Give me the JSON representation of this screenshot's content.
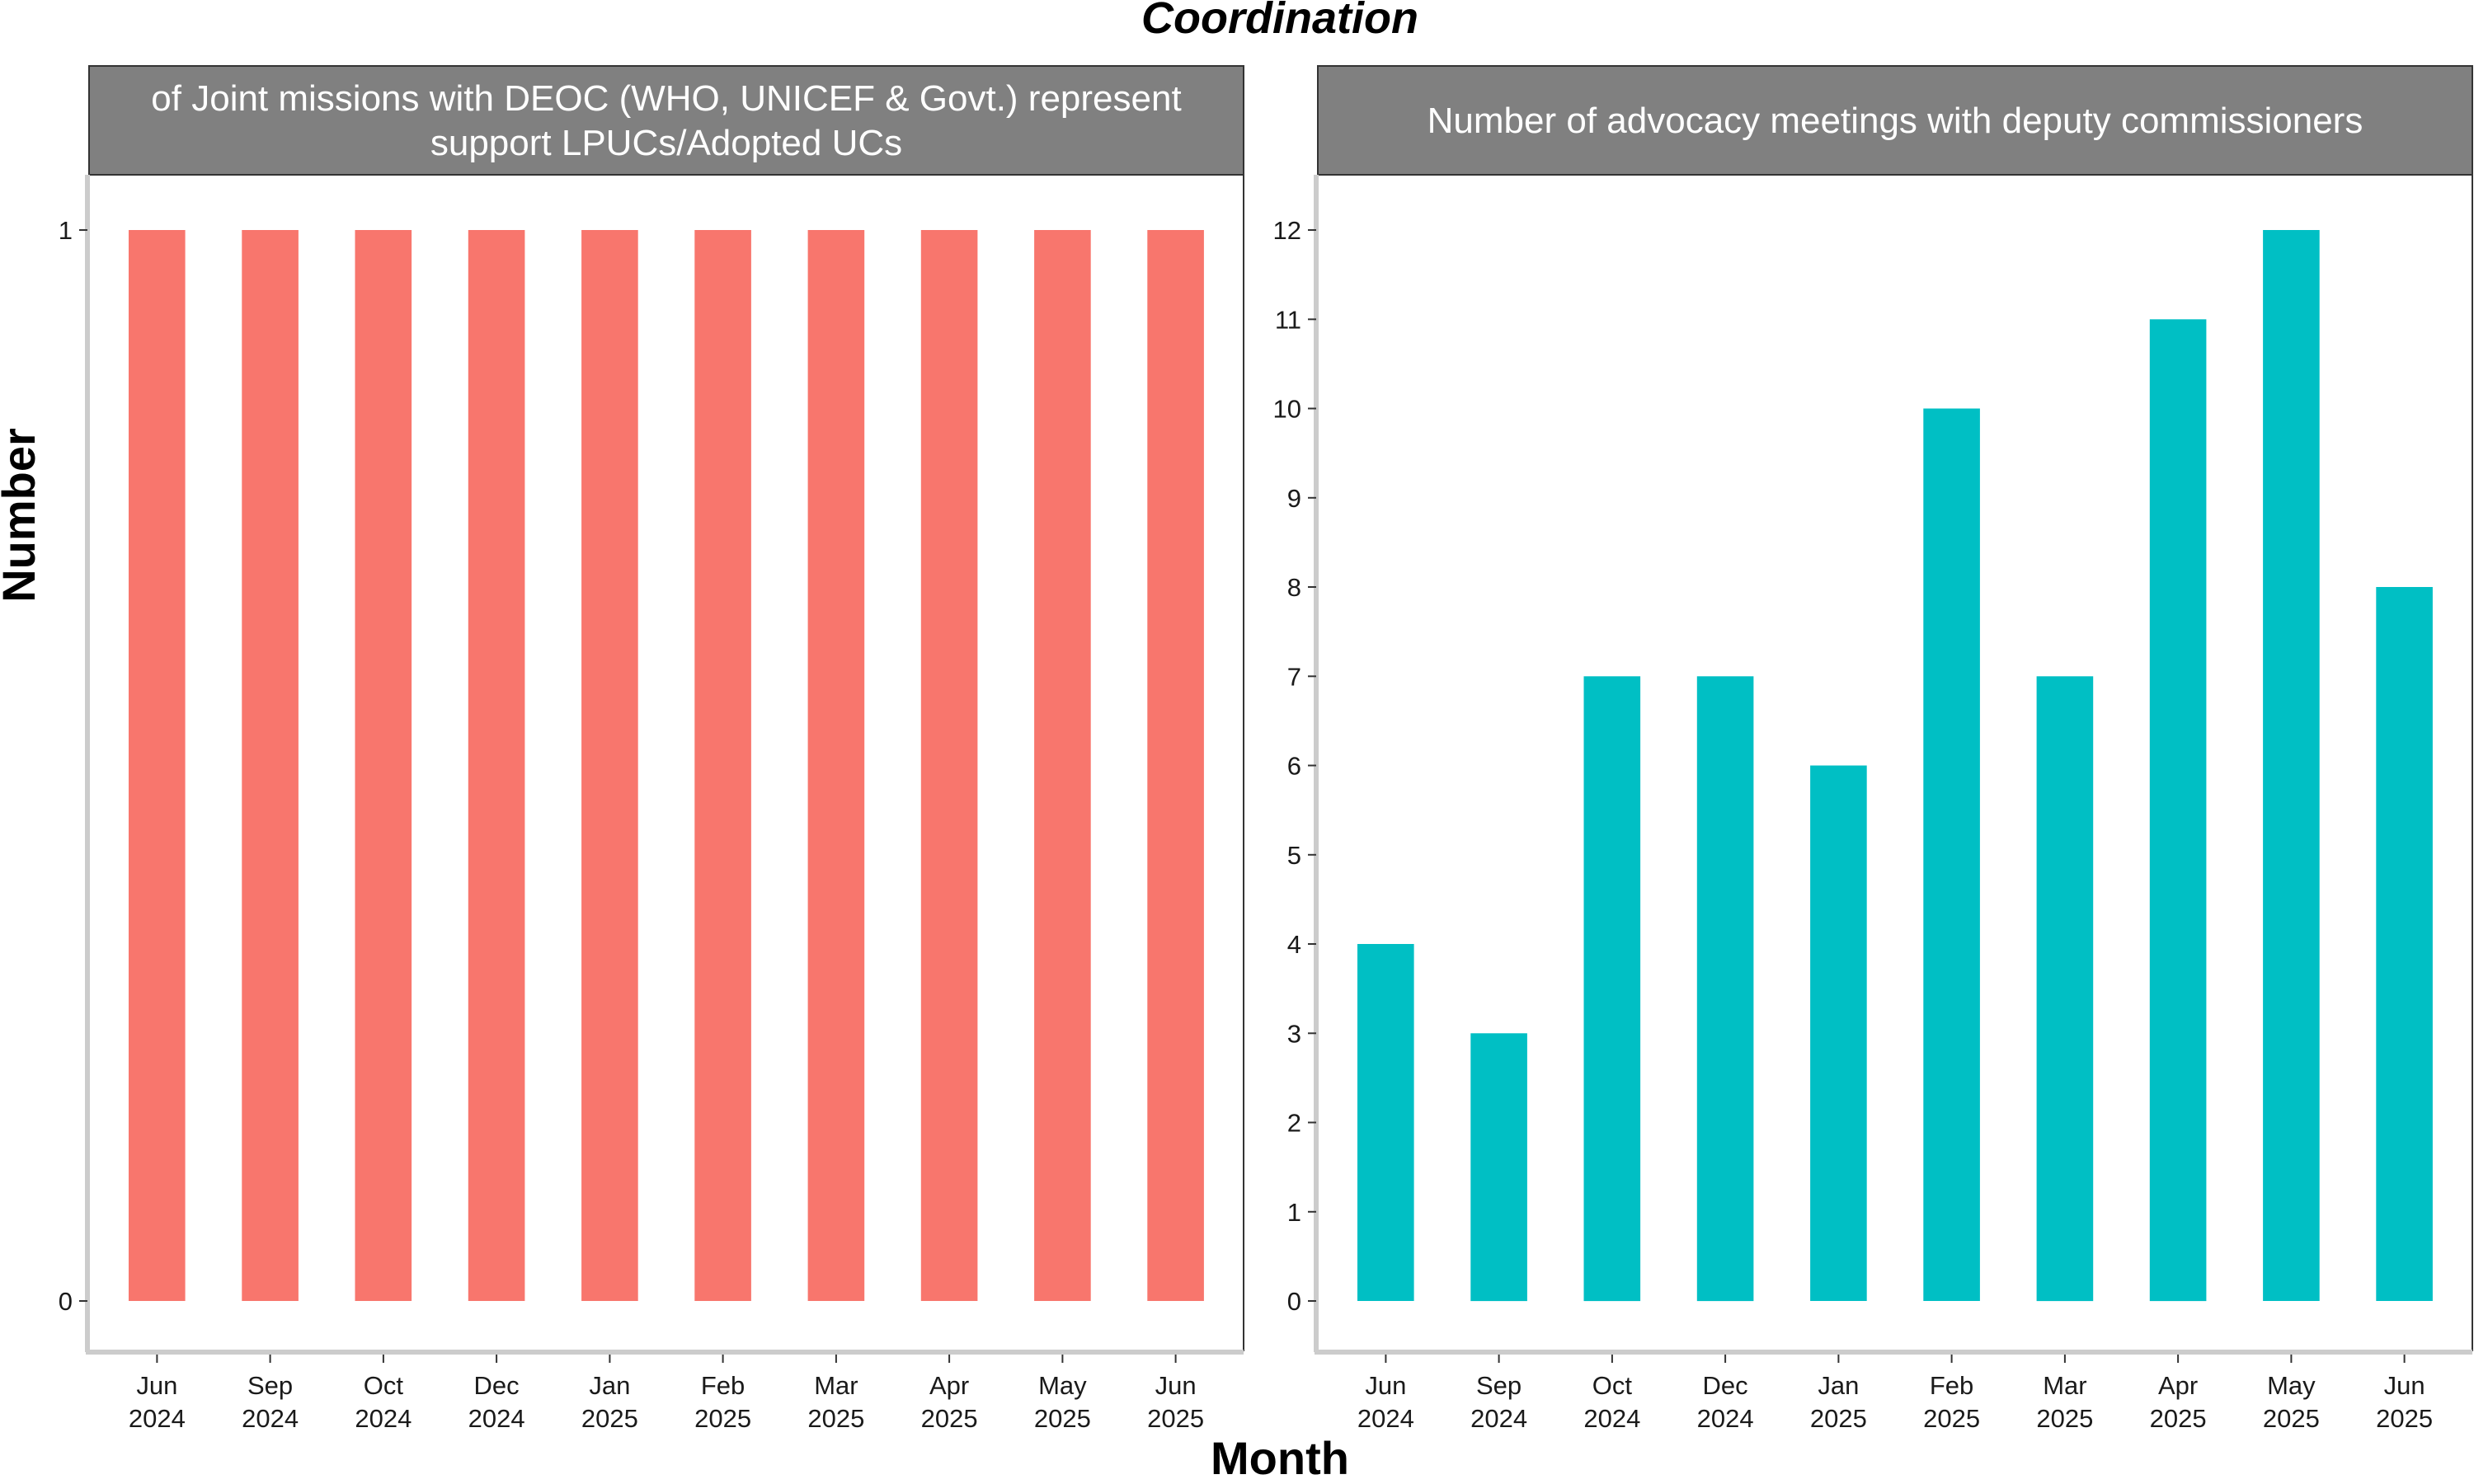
{
  "title": "Coordination",
  "xlabel": "Month",
  "ylabel": "Number",
  "colors": {
    "panel_left_bar": "#F8766D",
    "panel_right_bar": "#00BFC4",
    "strip": "#808080"
  },
  "chart_data": [
    {
      "type": "bar",
      "facet_title_lines": [
        "of Joint missions with DEOC (WHO, UNICEF & Govt.) represent",
        "support LPUCs/Adopted UCs"
      ],
      "categories": [
        [
          "Jun",
          "2024"
        ],
        [
          "Sep",
          "2024"
        ],
        [
          "Oct",
          "2024"
        ],
        [
          "Dec",
          "2024"
        ],
        [
          "Jan",
          "2025"
        ],
        [
          "Feb",
          "2025"
        ],
        [
          "Mar",
          "2025"
        ],
        [
          "Apr",
          "2025"
        ],
        [
          "May",
          "2025"
        ],
        [
          "Jun",
          "2025"
        ]
      ],
      "values": [
        1,
        1,
        1,
        1,
        1,
        1,
        1,
        1,
        1,
        1
      ],
      "yticks": [
        0,
        1
      ],
      "ylim": [
        0,
        1
      ]
    },
    {
      "type": "bar",
      "facet_title_lines": [
        "Number of advocacy meetings with deputy commissioners"
      ],
      "categories": [
        [
          "Jun",
          "2024"
        ],
        [
          "Sep",
          "2024"
        ],
        [
          "Oct",
          "2024"
        ],
        [
          "Dec",
          "2024"
        ],
        [
          "Jan",
          "2025"
        ],
        [
          "Feb",
          "2025"
        ],
        [
          "Mar",
          "2025"
        ],
        [
          "Apr",
          "2025"
        ],
        [
          "May",
          "2025"
        ],
        [
          "Jun",
          "2025"
        ]
      ],
      "values": [
        4,
        3,
        7,
        7,
        6,
        10,
        7,
        11,
        12,
        8
      ],
      "yticks": [
        0,
        1,
        2,
        3,
        4,
        5,
        6,
        7,
        8,
        9,
        10,
        11,
        12
      ],
      "ylim": [
        0,
        12
      ]
    }
  ]
}
